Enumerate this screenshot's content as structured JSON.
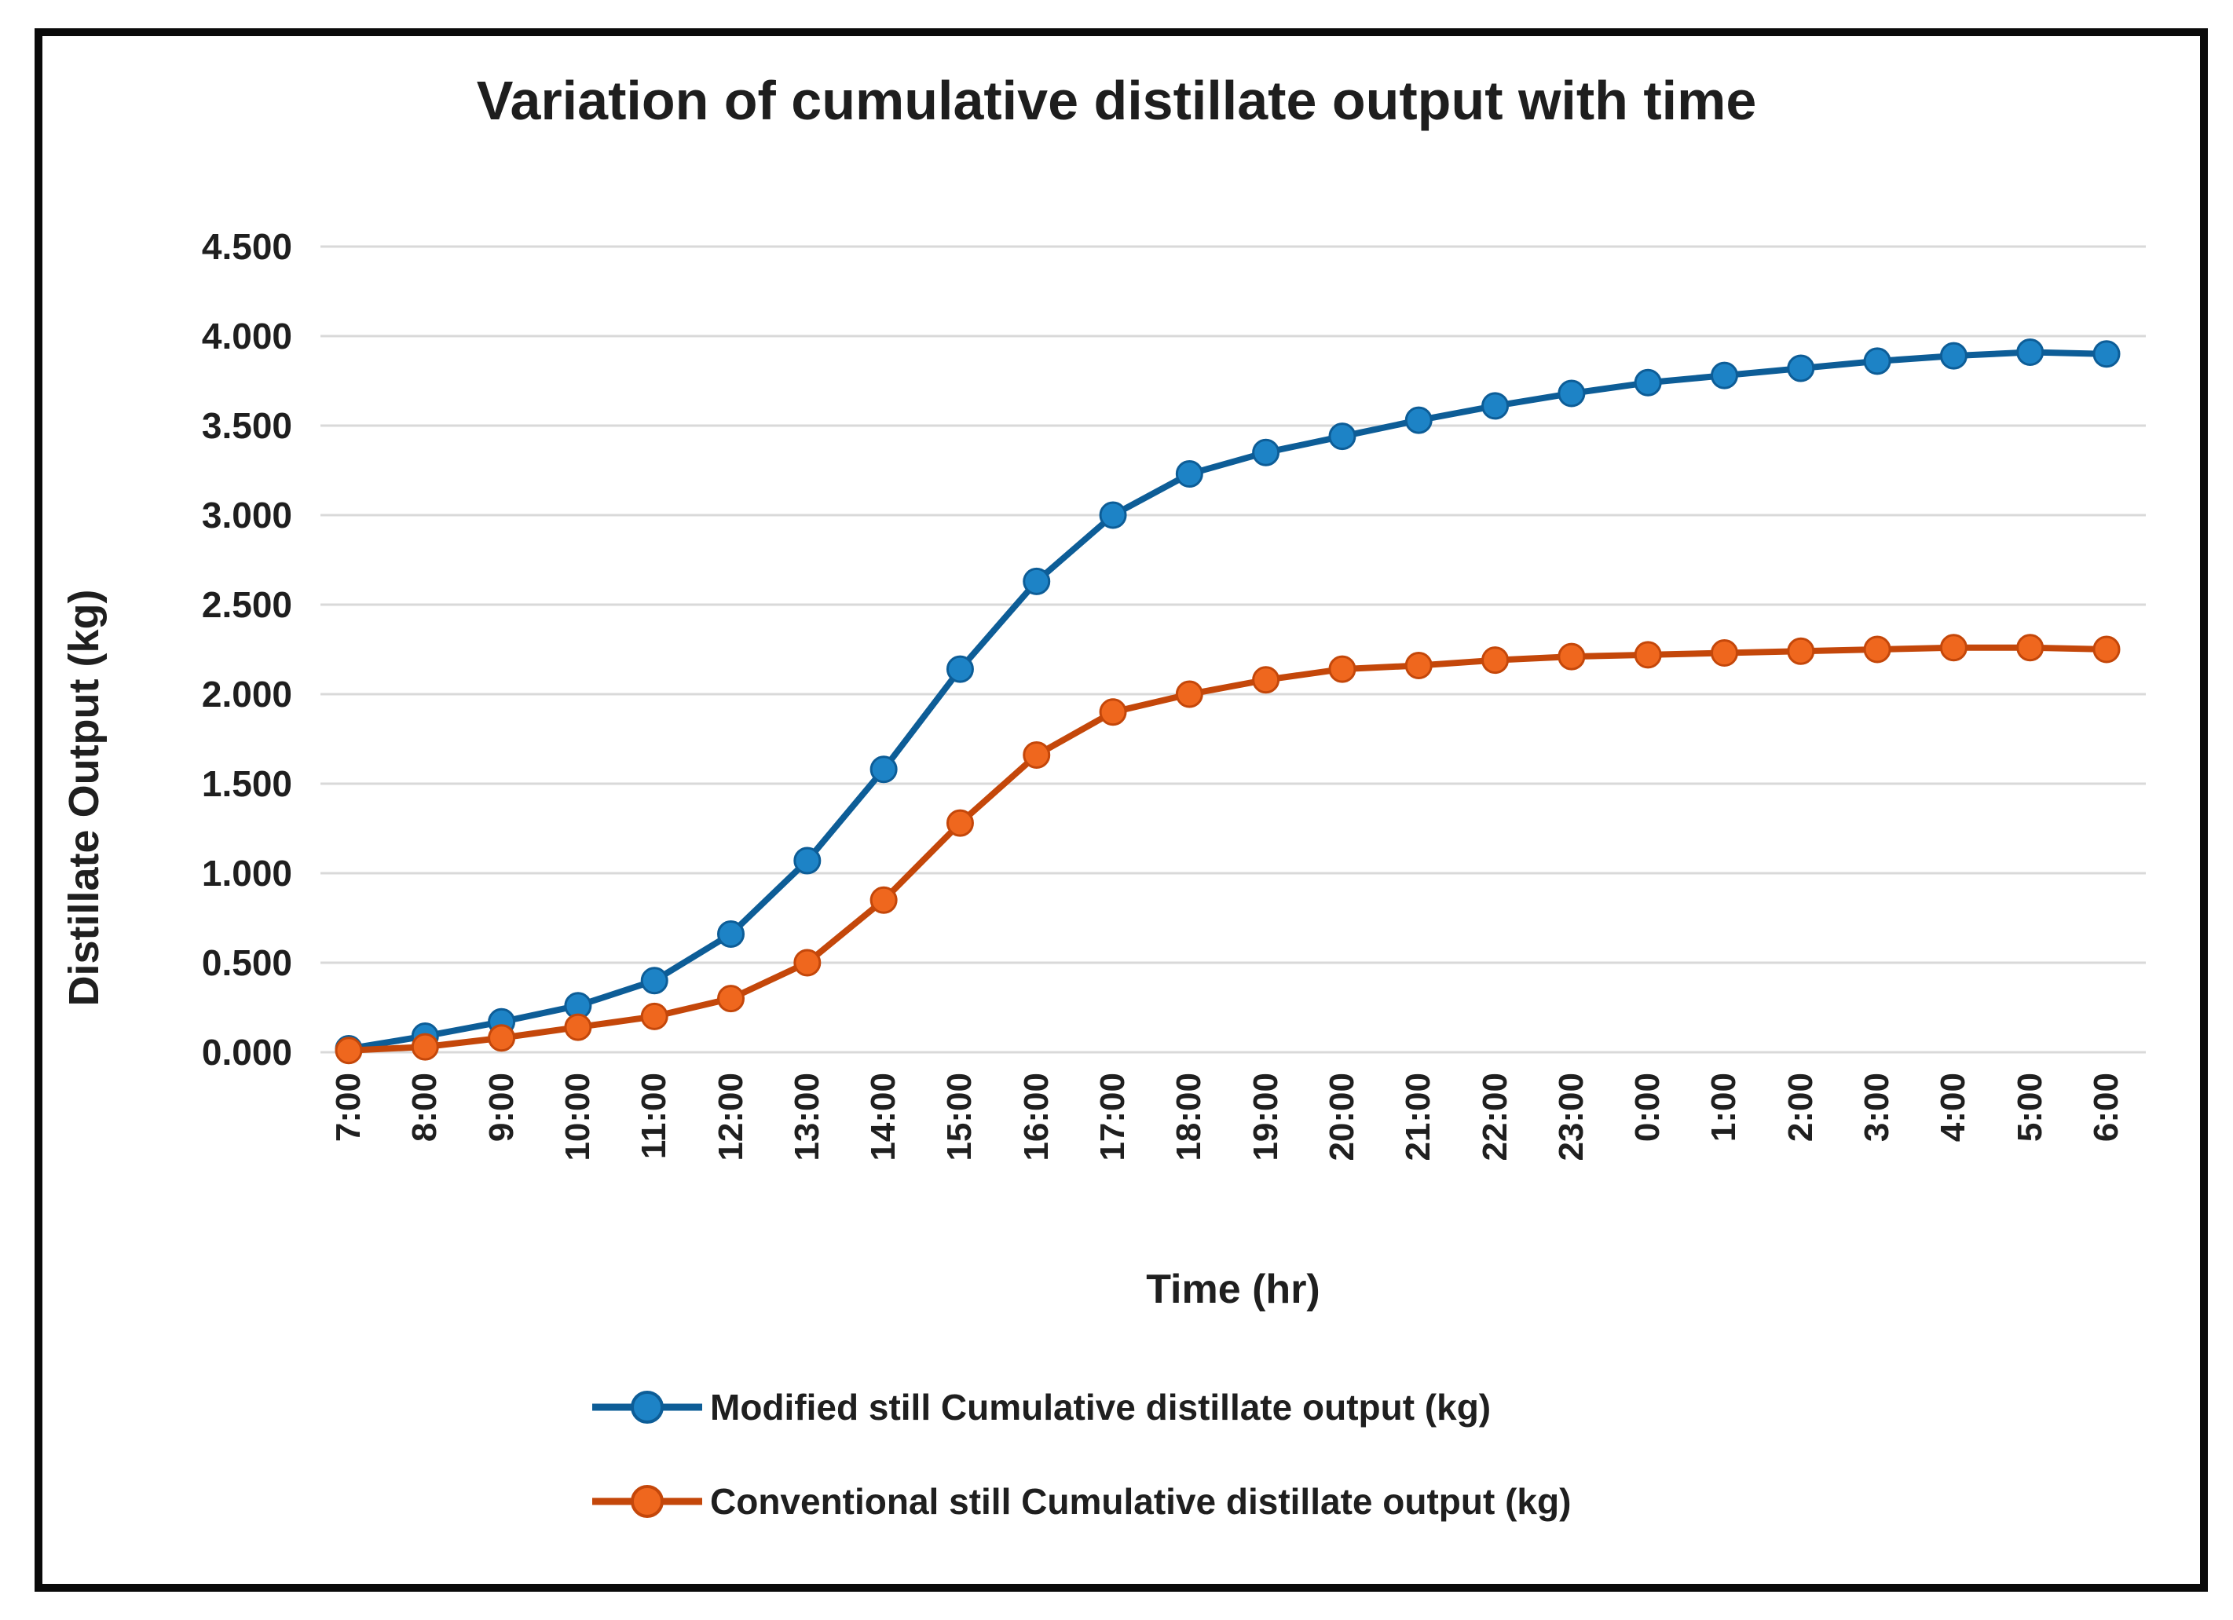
{
  "figure": {
    "background": "#ffffff",
    "border_color": "#0a0a0a",
    "text_color": "#1f1f1f",
    "gridline_color": "#d9d9d9"
  },
  "chart_data": {
    "type": "line",
    "title": "Variation of cumulative distillate output with time",
    "xlabel": "Time (hr)",
    "ylabel": "Distillate Output (kg)",
    "ylim": [
      0,
      4.5
    ],
    "ytick_step": 0.5,
    "ytick_labels": [
      "0.000",
      "0.500",
      "1.000",
      "1.500",
      "2.000",
      "2.500",
      "3.000",
      "3.500",
      "4.000",
      "4.500"
    ],
    "grid": "horizontal",
    "legend_position": "bottom",
    "categories": [
      "7:00",
      "8:00",
      "9:00",
      "10:00",
      "11:00",
      "12:00",
      "13:00",
      "14:00",
      "15:00",
      "16:00",
      "17:00",
      "18:00",
      "19:00",
      "20:00",
      "21:00",
      "22:00",
      "23:00",
      "0:00",
      "1:00",
      "2:00",
      "3:00",
      "4:00",
      "5:00",
      "6:00"
    ],
    "series": [
      {
        "name": "Modified still Cumulative distillate output (kg)",
        "line_color": "#0d5d97",
        "marker_color": "#1d83c6",
        "values": [
          0.02,
          0.09,
          0.17,
          0.26,
          0.4,
          0.66,
          1.07,
          1.58,
          2.14,
          2.63,
          3.0,
          3.23,
          3.35,
          3.44,
          3.53,
          3.61,
          3.68,
          3.74,
          3.78,
          3.82,
          3.86,
          3.89,
          3.91,
          3.9
        ]
      },
      {
        "name": "Conventional still Cumulative distillate output (kg)",
        "line_color": "#c4470a",
        "marker_color": "#ef671e",
        "values": [
          0.01,
          0.03,
          0.08,
          0.14,
          0.2,
          0.3,
          0.5,
          0.85,
          1.28,
          1.66,
          1.9,
          2.0,
          2.08,
          2.14,
          2.16,
          2.19,
          2.21,
          2.22,
          2.23,
          2.24,
          2.25,
          2.26,
          2.26,
          2.25
        ]
      }
    ]
  }
}
